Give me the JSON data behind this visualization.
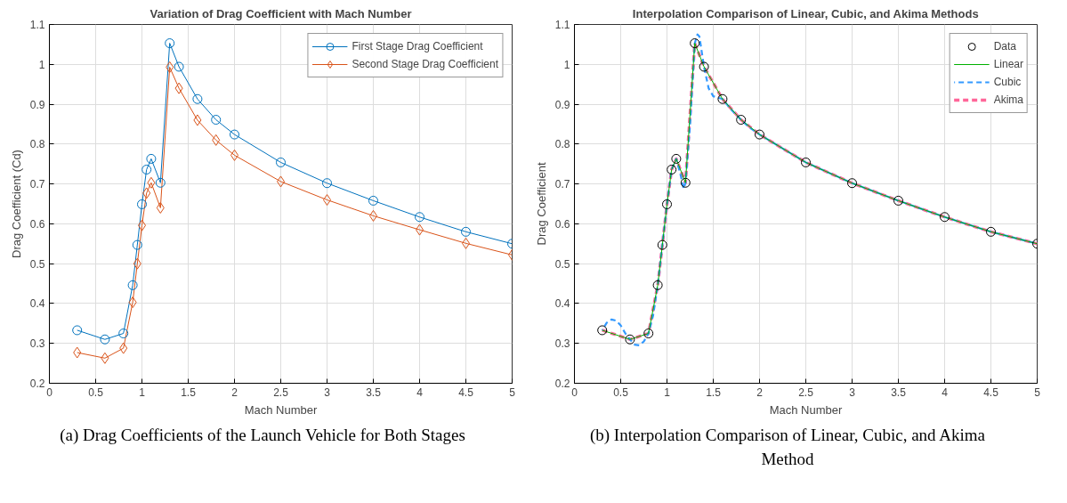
{
  "chart_data": [
    {
      "type": "line",
      "title": "Variation of Drag Coefficient with Mach Number",
      "xlabel": "Mach Number",
      "ylabel": "Drag Coefficient (Cd)",
      "x": [
        0.3,
        0.6,
        0.8,
        0.9,
        0.95,
        1.0,
        1.05,
        1.1,
        1.2,
        1.3,
        1.4,
        1.6,
        1.8,
        2.0,
        2.5,
        3.0,
        3.5,
        4.0,
        4.5,
        5.0
      ],
      "series": [
        {
          "name": "First Stage Drag Coefficient",
          "color": "#0072bd",
          "marker": "circle",
          "values": [
            0.333,
            0.31,
            0.325,
            0.446,
            0.547,
            0.649,
            0.736,
            0.763,
            0.703,
            1.053,
            0.994,
            0.913,
            0.861,
            0.824,
            0.754,
            0.702,
            0.658,
            0.617,
            0.58,
            0.55
          ]
        },
        {
          "name": "Second Stage Drag Coefficient",
          "color": "#d95319",
          "marker": "diamond",
          "values": [
            0.277,
            0.263,
            0.288,
            0.403,
            0.5,
            0.596,
            0.677,
            0.703,
            0.64,
            0.993,
            0.94,
            0.86,
            0.81,
            0.772,
            0.706,
            0.66,
            0.62,
            0.585,
            0.551,
            0.522
          ]
        }
      ],
      "xlim": [
        0,
        5
      ],
      "xticks": [
        0,
        0.5,
        1,
        1.5,
        2,
        2.5,
        3,
        3.5,
        4,
        4.5,
        5
      ],
      "ylim": [
        0.2,
        1.1
      ],
      "yticks": [
        0.2,
        0.3,
        0.4,
        0.5,
        0.6,
        0.7,
        0.8,
        0.9,
        1,
        1.1
      ],
      "grid": true,
      "legend": "top right",
      "line_style": "solid",
      "annotations": [
        "(a) Drag Coefficients of the Launch Vehicle for Both Stages"
      ]
    },
    {
      "type": "line",
      "title": "Interpolation Comparison of Linear, Cubic, and Akima Methods",
      "xlabel": "Mach Number",
      "ylabel": "Drag Coefficient",
      "x": [
        0.3,
        0.6,
        0.8,
        0.9,
        0.95,
        1.0,
        1.05,
        1.1,
        1.2,
        1.3,
        1.4,
        1.6,
        1.8,
        2.0,
        2.5,
        3.0,
        3.5,
        4.0,
        4.5,
        5.0
      ],
      "series": [
        {
          "name": "Data",
          "type": "scatter",
          "color": "#000000",
          "marker": "circle",
          "values": [
            0.333,
            0.31,
            0.325,
            0.446,
            0.547,
            0.649,
            0.736,
            0.763,
            0.703,
            1.053,
            0.994,
            0.913,
            0.861,
            0.824,
            0.754,
            0.702,
            0.658,
            0.617,
            0.58,
            0.55
          ]
        },
        {
          "name": "Linear",
          "color": "#00b000",
          "line_style": "solid",
          "values": [
            0.333,
            0.31,
            0.325,
            0.446,
            0.547,
            0.649,
            0.736,
            0.763,
            0.703,
            1.053,
            0.994,
            0.913,
            0.861,
            0.824,
            0.754,
            0.702,
            0.658,
            0.617,
            0.58,
            0.55
          ]
        },
        {
          "name": "Cubic",
          "color": "#3399ff",
          "line_style": "dashed",
          "x": [
            0.3,
            0.35,
            0.4,
            0.45,
            0.5,
            0.55,
            0.6,
            0.65,
            0.7,
            0.75,
            0.8,
            0.85,
            0.9,
            0.95,
            1.0,
            1.05,
            1.1,
            1.15,
            1.18,
            1.2,
            1.25,
            1.3,
            1.33,
            1.35,
            1.4,
            1.45,
            1.5,
            1.6,
            1.7,
            1.8,
            1.9,
            2.0,
            2.5,
            3.0,
            3.5,
            4.0,
            4.5,
            5.0
          ],
          "values": [
            0.333,
            0.352,
            0.36,
            0.357,
            0.345,
            0.325,
            0.31,
            0.297,
            0.295,
            0.305,
            0.325,
            0.37,
            0.446,
            0.547,
            0.649,
            0.736,
            0.763,
            0.72,
            0.688,
            0.703,
            0.85,
            1.053,
            1.075,
            1.07,
            0.994,
            0.94,
            0.92,
            0.913,
            0.885,
            0.861,
            0.84,
            0.824,
            0.754,
            0.702,
            0.658,
            0.617,
            0.58,
            0.55
          ]
        },
        {
          "name": "Akima",
          "color": "#ff6699",
          "line_style": "dashed",
          "values": [
            0.333,
            0.31,
            0.325,
            0.446,
            0.547,
            0.649,
            0.736,
            0.763,
            0.703,
            1.053,
            0.994,
            0.913,
            0.861,
            0.824,
            0.754,
            0.702,
            0.658,
            0.617,
            0.58,
            0.55
          ]
        }
      ],
      "xlim": [
        0,
        5
      ],
      "xticks": [
        0,
        0.5,
        1,
        1.5,
        2,
        2.5,
        3,
        3.5,
        4,
        4.5,
        5
      ],
      "ylim": [
        0.2,
        1.1
      ],
      "yticks": [
        0.2,
        0.3,
        0.4,
        0.5,
        0.6,
        0.7,
        0.8,
        0.9,
        1,
        1.1
      ],
      "grid": true,
      "legend": "top right",
      "marker": "none",
      "annotations": [
        "(b) Interpolation Comparison of Linear, Cubic, and Akima Method"
      ]
    }
  ]
}
